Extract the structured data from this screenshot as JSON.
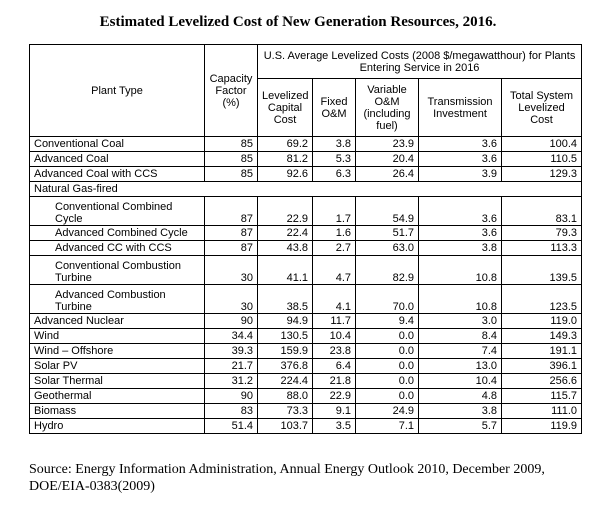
{
  "title": "Estimated Levelized Cost of New Generation Resources, 2016.",
  "table": {
    "header_plant_type": "Plant Type",
    "header_capacity_factor": "Capacity Factor (%)",
    "header_group": "U.S. Average Levelized Costs (2008 $/megawatthour) for Plants Entering Service in 2016",
    "subheaders": [
      "Levelized Capital Cost",
      "Fixed O&M",
      "Variable O&M (including fuel)",
      "Transmission Investment",
      "Total System Levelized Cost"
    ],
    "rows": [
      {
        "name": "Conventional Coal",
        "values": [
          "85",
          "69.2",
          "3.8",
          "23.9",
          "3.6",
          "100.4"
        ]
      },
      {
        "name": "Advanced Coal",
        "values": [
          "85",
          "81.2",
          "5.3",
          "20.4",
          "3.6",
          "110.5"
        ]
      },
      {
        "name": "Advanced Coal with CCS",
        "values": [
          "85",
          "92.6",
          "6.3",
          "26.4",
          "3.9",
          "129.3"
        ]
      },
      {
        "name": "Natural Gas-fired"
      },
      {
        "name": "Conventional Combined Cycle",
        "indent": true,
        "tall": true,
        "values": [
          "87",
          "22.9",
          "1.7",
          "54.9",
          "3.6",
          "83.1"
        ]
      },
      {
        "name": "Advanced Combined Cycle",
        "indent": true,
        "values": [
          "87",
          "22.4",
          "1.6",
          "51.7",
          "3.6",
          "79.3"
        ]
      },
      {
        "name": "Advanced CC with CCS",
        "indent": true,
        "values": [
          "87",
          "43.8",
          "2.7",
          "63.0",
          "3.8",
          "113.3"
        ]
      },
      {
        "name": "Conventional Combustion Turbine",
        "indent": true,
        "tall": true,
        "values": [
          "30",
          "41.1",
          "4.7",
          "82.9",
          "10.8",
          "139.5"
        ]
      },
      {
        "name": "Advanced Combustion Turbine",
        "indent": true,
        "tall": true,
        "values": [
          "30",
          "38.5",
          "4.1",
          "70.0",
          "10.8",
          "123.5"
        ]
      },
      {
        "name": "Advanced Nuclear",
        "values": [
          "90",
          "94.9",
          "11.7",
          "9.4",
          "3.0",
          "119.0"
        ]
      },
      {
        "name": "Wind",
        "values": [
          "34.4",
          "130.5",
          "10.4",
          "0.0",
          "8.4",
          "149.3"
        ]
      },
      {
        "name": "Wind – Offshore",
        "values": [
          "39.3",
          "159.9",
          "23.8",
          "0.0",
          "7.4",
          "191.1"
        ]
      },
      {
        "name": "Solar PV",
        "values": [
          "21.7",
          "376.8",
          "6.4",
          "0.0",
          "13.0",
          "396.1"
        ]
      },
      {
        "name": "Solar Thermal",
        "values": [
          "31.2",
          "224.4",
          "21.8",
          "0.0",
          "10.4",
          "256.6"
        ]
      },
      {
        "name": "Geothermal",
        "values": [
          "90",
          "88.0",
          "22.9",
          "0.0",
          "4.8",
          "115.7"
        ]
      },
      {
        "name": "Biomass",
        "values": [
          "83",
          "73.3",
          "9.1",
          "24.9",
          "3.8",
          "111.0"
        ]
      },
      {
        "name": "Hydro",
        "values": [
          "51.4",
          "103.7",
          "3.5",
          "7.1",
          "5.7",
          "119.9"
        ]
      }
    ]
  },
  "source": "Source:  Energy Information Administration, Annual Energy Outlook 2010, December 2009, DOE/EIA-0383(2009)"
}
